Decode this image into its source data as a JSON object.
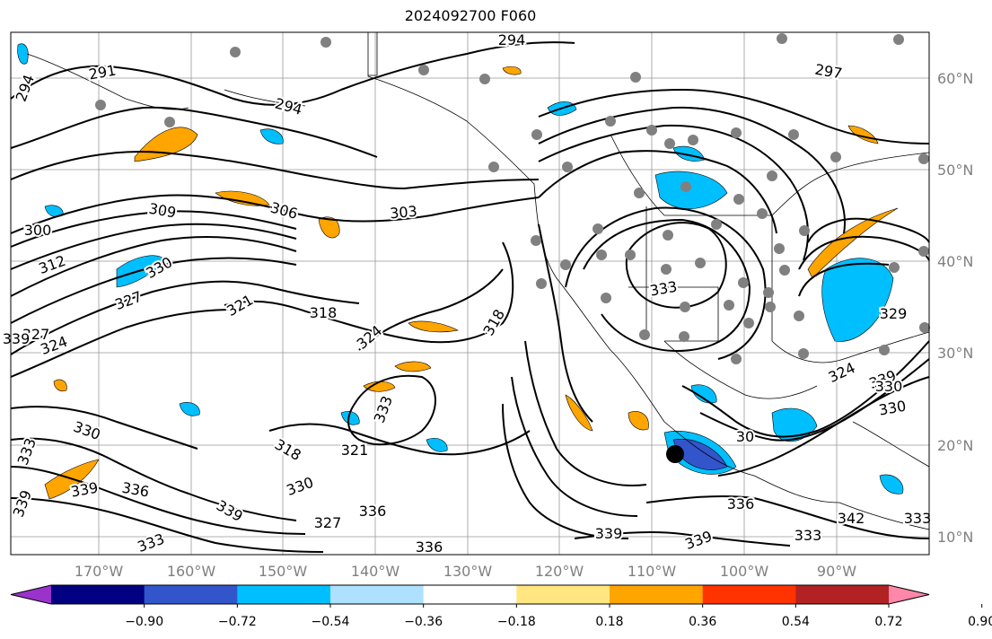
{
  "title": "2024092700 F060",
  "lon_labels": [
    "170°W",
    "160°W",
    "150°W",
    "140°W",
    "130°W",
    "120°W",
    "110°W",
    "100°W",
    "90°W"
  ],
  "lat_labels": [
    "60°N",
    "50°N",
    "40°N",
    "30°N",
    "20°N",
    "10°N"
  ],
  "contour_labels": [
    "294",
    "291",
    "294",
    "294",
    "297",
    "300",
    "309",
    "306",
    "303",
    "312",
    "330",
    "327",
    "321",
    "318",
    "324",
    "318",
    "333",
    "324",
    "327",
    "324",
    "339",
    "330",
    "333",
    "330",
    "336",
    "339",
    "321",
    "318",
    "330",
    "339",
    "327",
    "336",
    "336",
    "339",
    "342",
    "336",
    "333",
    "339",
    "333",
    "339",
    "330",
    "339",
    "333",
    "30",
    "333",
    "329"
  ],
  "colorbar": {
    "ticks": [
      "−0.90",
      "−0.72",
      "−0.54",
      "−0.36",
      "−0.18",
      "0.18",
      "0.36",
      "0.54",
      "0.72",
      "0.90"
    ],
    "colors": [
      "#9933cc",
      "#000080",
      "#3355cc",
      "#00bfff",
      "#aee0ff",
      "#ffffff",
      "#ffe680",
      "#ffa500",
      "#ff3300",
      "#b22222",
      "#ff88aa"
    ]
  },
  "marker_color": "#000000",
  "station_color": "#808080",
  "shading_colors": {
    "orange": "#ffa500",
    "blue": "#00bfff",
    "darkblue": "#3355cc"
  }
}
